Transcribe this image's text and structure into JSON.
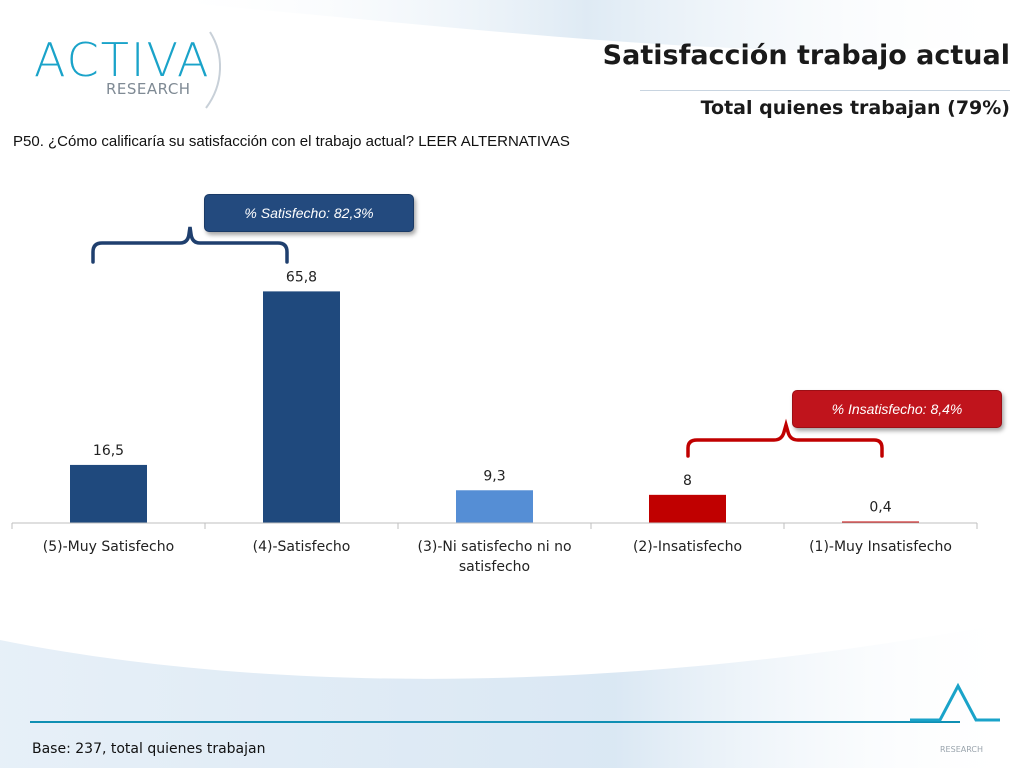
{
  "header": {
    "logo_text": "ACTIVA",
    "logo_sub": "RESEARCH",
    "title": "Satisfacción trabajo actual",
    "subtitle": "Total quienes trabajan (79%)"
  },
  "question": "P50. ¿Cómo calificaría su satisfacción con el trabajo actual? LEER ALTERNATIVAS",
  "callouts": {
    "satisfied": "% Satisfecho:  82,3%",
    "unsatisfied": "% Insatisfecho: 8,4%"
  },
  "footer": {
    "base": "Base: 237, total quienes trabajan",
    "logo_sub": "RESEARCH"
  },
  "colors": {
    "dark_blue": "#1f497d",
    "light_blue": "#558ed5",
    "red": "#c00000",
    "callout_blue": "#234a7e",
    "callout_red": "#c0141c"
  },
  "chart_data": {
    "type": "bar",
    "categories": [
      [
        "(5)-Muy Satisfecho"
      ],
      [
        "(4)-Satisfecho"
      ],
      [
        "(3)-Ni satisfecho ni no",
        "satisfecho"
      ],
      [
        "(2)-Insatisfecho"
      ],
      [
        "(1)-Muy Insatisfecho"
      ]
    ],
    "values": [
      16.5,
      65.8,
      9.3,
      8,
      0.4
    ],
    "value_labels": [
      "16,5",
      "65,8",
      "9,3",
      "8",
      "0,4"
    ],
    "bar_colors": [
      "#1f497d",
      "#1f497d",
      "#558ed5",
      "#c00000",
      "#c00000"
    ],
    "ylim": [
      0,
      70
    ],
    "grid": false,
    "legend": "none"
  }
}
